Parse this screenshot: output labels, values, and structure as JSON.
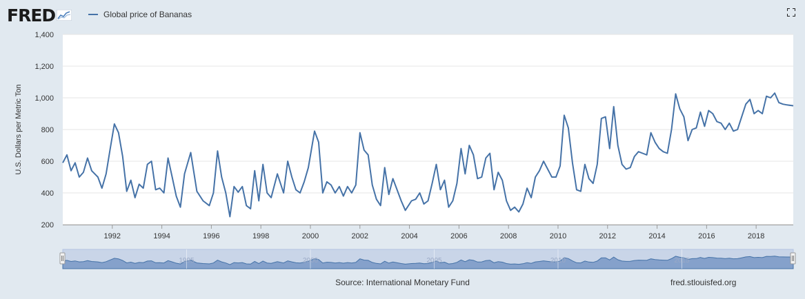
{
  "header": {
    "logo_text": "FRED",
    "legend_label": "Global price of Bananas",
    "fullscreen_icon": "fullscreen-icon"
  },
  "footer": {
    "source": "Source: International Monetary Fund",
    "link": "fred.stlouisfed.org"
  },
  "navigator": {
    "tick_labels": [
      "1995",
      "2000",
      "2005",
      "2010",
      "2015"
    ]
  },
  "colors": {
    "line": "#4572a7",
    "background": "#e1e9f0",
    "plot_background": "#ffffff",
    "grid": "#e6e6e6",
    "navigator_fill": "#b3c4e2"
  },
  "chart_data": {
    "type": "line",
    "ylabel": "U.S. Dollars per Metric Ton",
    "ylim": [
      200,
      1400
    ],
    "yticks": [
      200,
      400,
      600,
      800,
      1000,
      1200,
      1400
    ],
    "ytick_labels": [
      "200",
      "400",
      "600",
      "800",
      "1,000",
      "1,200",
      "1,400"
    ],
    "xlim": [
      "1990-01",
      "2019-07"
    ],
    "xticks": [
      "1992",
      "1994",
      "1996",
      "1998",
      "2000",
      "2002",
      "2004",
      "2006",
      "2008",
      "2010",
      "2012",
      "2014",
      "2016",
      "2018"
    ],
    "grid": true,
    "legend": "top-left",
    "series": [
      {
        "name": "Global price of Bananas",
        "points": [
          [
            "1990-01",
            590
          ],
          [
            "1990-03",
            640
          ],
          [
            "1990-05",
            540
          ],
          [
            "1990-07",
            590
          ],
          [
            "1990-09",
            500
          ],
          [
            "1990-11",
            530
          ],
          [
            "1991-01",
            620
          ],
          [
            "1991-03",
            540
          ],
          [
            "1991-06",
            500
          ],
          [
            "1991-08",
            430
          ],
          [
            "1991-10",
            520
          ],
          [
            "1991-12",
            680
          ],
          [
            "1992-02",
            835
          ],
          [
            "1992-04",
            780
          ],
          [
            "1992-06",
            630
          ],
          [
            "1992-08",
            410
          ],
          [
            "1992-10",
            480
          ],
          [
            "1992-12",
            370
          ],
          [
            "1993-02",
            455
          ],
          [
            "1993-04",
            430
          ],
          [
            "1993-06",
            580
          ],
          [
            "1993-08",
            600
          ],
          [
            "1993-10",
            420
          ],
          [
            "1993-12",
            430
          ],
          [
            "1994-02",
            400
          ],
          [
            "1994-04",
            620
          ],
          [
            "1994-06",
            500
          ],
          [
            "1994-08",
            380
          ],
          [
            "1994-10",
            310
          ],
          [
            "1994-12",
            520
          ],
          [
            "1995-03",
            655
          ],
          [
            "1995-06",
            410
          ],
          [
            "1995-09",
            350
          ],
          [
            "1995-12",
            320
          ],
          [
            "1996-02",
            400
          ],
          [
            "1996-04",
            665
          ],
          [
            "1996-06",
            500
          ],
          [
            "1996-08",
            400
          ],
          [
            "1996-10",
            250
          ],
          [
            "1996-12",
            440
          ],
          [
            "1997-02",
            405
          ],
          [
            "1997-04",
            440
          ],
          [
            "1997-06",
            320
          ],
          [
            "1997-08",
            300
          ],
          [
            "1997-10",
            540
          ],
          [
            "1997-12",
            350
          ],
          [
            "1998-02",
            580
          ],
          [
            "1998-04",
            400
          ],
          [
            "1998-06",
            370
          ],
          [
            "1998-09",
            520
          ],
          [
            "1998-12",
            400
          ],
          [
            "1999-02",
            600
          ],
          [
            "1999-04",
            500
          ],
          [
            "1999-06",
            420
          ],
          [
            "1999-08",
            400
          ],
          [
            "1999-10",
            470
          ],
          [
            "1999-12",
            560
          ],
          [
            "2000-03",
            790
          ],
          [
            "2000-05",
            720
          ],
          [
            "2000-07",
            400
          ],
          [
            "2000-09",
            470
          ],
          [
            "2000-11",
            450
          ],
          [
            "2001-01",
            400
          ],
          [
            "2001-03",
            440
          ],
          [
            "2001-05",
            380
          ],
          [
            "2001-07",
            440
          ],
          [
            "2001-09",
            400
          ],
          [
            "2001-11",
            450
          ],
          [
            "2002-01",
            780
          ],
          [
            "2002-03",
            670
          ],
          [
            "2002-05",
            640
          ],
          [
            "2002-07",
            450
          ],
          [
            "2002-09",
            360
          ],
          [
            "2002-11",
            320
          ],
          [
            "2003-01",
            560
          ],
          [
            "2003-03",
            390
          ],
          [
            "2003-05",
            490
          ],
          [
            "2003-07",
            420
          ],
          [
            "2003-09",
            350
          ],
          [
            "2003-11",
            290
          ],
          [
            "2004-02",
            350
          ],
          [
            "2004-04",
            360
          ],
          [
            "2004-06",
            400
          ],
          [
            "2004-08",
            330
          ],
          [
            "2004-10",
            350
          ],
          [
            "2004-12",
            460
          ],
          [
            "2005-02",
            580
          ],
          [
            "2005-04",
            420
          ],
          [
            "2005-06",
            480
          ],
          [
            "2005-08",
            310
          ],
          [
            "2005-10",
            350
          ],
          [
            "2005-12",
            460
          ],
          [
            "2006-02",
            680
          ],
          [
            "2006-04",
            520
          ],
          [
            "2006-06",
            700
          ],
          [
            "2006-08",
            640
          ],
          [
            "2006-10",
            490
          ],
          [
            "2006-12",
            500
          ],
          [
            "2007-02",
            620
          ],
          [
            "2007-04",
            650
          ],
          [
            "2007-06",
            420
          ],
          [
            "2007-08",
            530
          ],
          [
            "2007-10",
            480
          ],
          [
            "2007-12",
            350
          ],
          [
            "2008-02",
            290
          ],
          [
            "2008-04",
            310
          ],
          [
            "2008-06",
            280
          ],
          [
            "2008-08",
            330
          ],
          [
            "2008-10",
            430
          ],
          [
            "2008-12",
            370
          ],
          [
            "2009-02",
            500
          ],
          [
            "2009-04",
            540
          ],
          [
            "2009-06",
            600
          ],
          [
            "2009-08",
            550
          ],
          [
            "2009-10",
            500
          ],
          [
            "2009-12",
            500
          ],
          [
            "2010-02",
            570
          ],
          [
            "2010-04",
            890
          ],
          [
            "2010-06",
            810
          ],
          [
            "2010-08",
            590
          ],
          [
            "2010-10",
            420
          ],
          [
            "2010-12",
            410
          ],
          [
            "2011-02",
            580
          ],
          [
            "2011-04",
            490
          ],
          [
            "2011-06",
            460
          ],
          [
            "2011-08",
            580
          ],
          [
            "2011-10",
            870
          ],
          [
            "2011-12",
            880
          ],
          [
            "2012-02",
            680
          ],
          [
            "2012-04",
            945
          ],
          [
            "2012-06",
            700
          ],
          [
            "2012-08",
            580
          ],
          [
            "2012-10",
            550
          ],
          [
            "2012-12",
            560
          ],
          [
            "2013-02",
            630
          ],
          [
            "2013-04",
            660
          ],
          [
            "2013-06",
            650
          ],
          [
            "2013-08",
            640
          ],
          [
            "2013-10",
            780
          ],
          [
            "2013-12",
            720
          ],
          [
            "2014-02",
            680
          ],
          [
            "2014-04",
            660
          ],
          [
            "2014-06",
            650
          ],
          [
            "2014-08",
            800
          ],
          [
            "2014-10",
            1025
          ],
          [
            "2014-12",
            930
          ],
          [
            "2015-02",
            880
          ],
          [
            "2015-04",
            730
          ],
          [
            "2015-06",
            800
          ],
          [
            "2015-08",
            810
          ],
          [
            "2015-10",
            910
          ],
          [
            "2015-12",
            820
          ],
          [
            "2016-02",
            920
          ],
          [
            "2016-04",
            900
          ],
          [
            "2016-06",
            850
          ],
          [
            "2016-08",
            840
          ],
          [
            "2016-10",
            800
          ],
          [
            "2016-12",
            840
          ],
          [
            "2017-02",
            790
          ],
          [
            "2017-04",
            800
          ],
          [
            "2017-06",
            880
          ],
          [
            "2017-08",
            960
          ],
          [
            "2017-10",
            990
          ],
          [
            "2017-12",
            900
          ],
          [
            "2018-02",
            920
          ],
          [
            "2018-04",
            900
          ],
          [
            "2018-06",
            1010
          ],
          [
            "2018-08",
            1000
          ],
          [
            "2018-10",
            1030
          ],
          [
            "2018-12",
            970
          ],
          [
            "2019-02",
            960
          ],
          [
            "2019-04",
            955
          ],
          [
            "2019-07",
            950
          ]
        ]
      }
    ]
  }
}
